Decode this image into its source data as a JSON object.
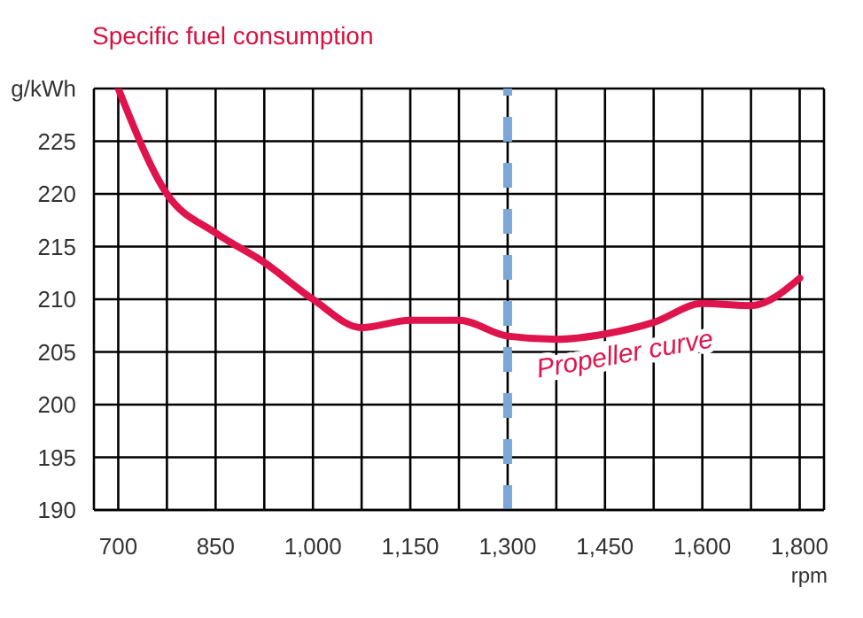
{
  "chart_data": {
    "type": "line",
    "title": "Specific fuel consumption",
    "xlabel": "rpm",
    "categories": [
      "700",
      null,
      "850",
      null,
      "1,000",
      null,
      "1,150",
      null,
      "1,300",
      null,
      "1,450",
      null,
      "1,600",
      null,
      "1,800"
    ],
    "series": [
      {
        "name": "Propeller curve",
        "color": "#e0144c",
        "values": [
          230,
          220,
          216.3,
          213.5,
          210,
          207.3,
          208,
          208,
          206.5,
          206.2,
          206.7,
          207.8,
          209.6,
          209.4,
          212
        ]
      }
    ],
    "ylim": [
      190,
      230
    ],
    "yticks": [
      190,
      195,
      200,
      205,
      210,
      215,
      220,
      225,
      {
        "value": 230,
        "label": "g/kWh"
      }
    ],
    "ref_lines": [
      {
        "axis": "x",
        "value": "1,300",
        "color": "#7aa7d8",
        "line_style": "dashed"
      }
    ],
    "grid": true,
    "marker": "none",
    "line_style": "solid"
  }
}
